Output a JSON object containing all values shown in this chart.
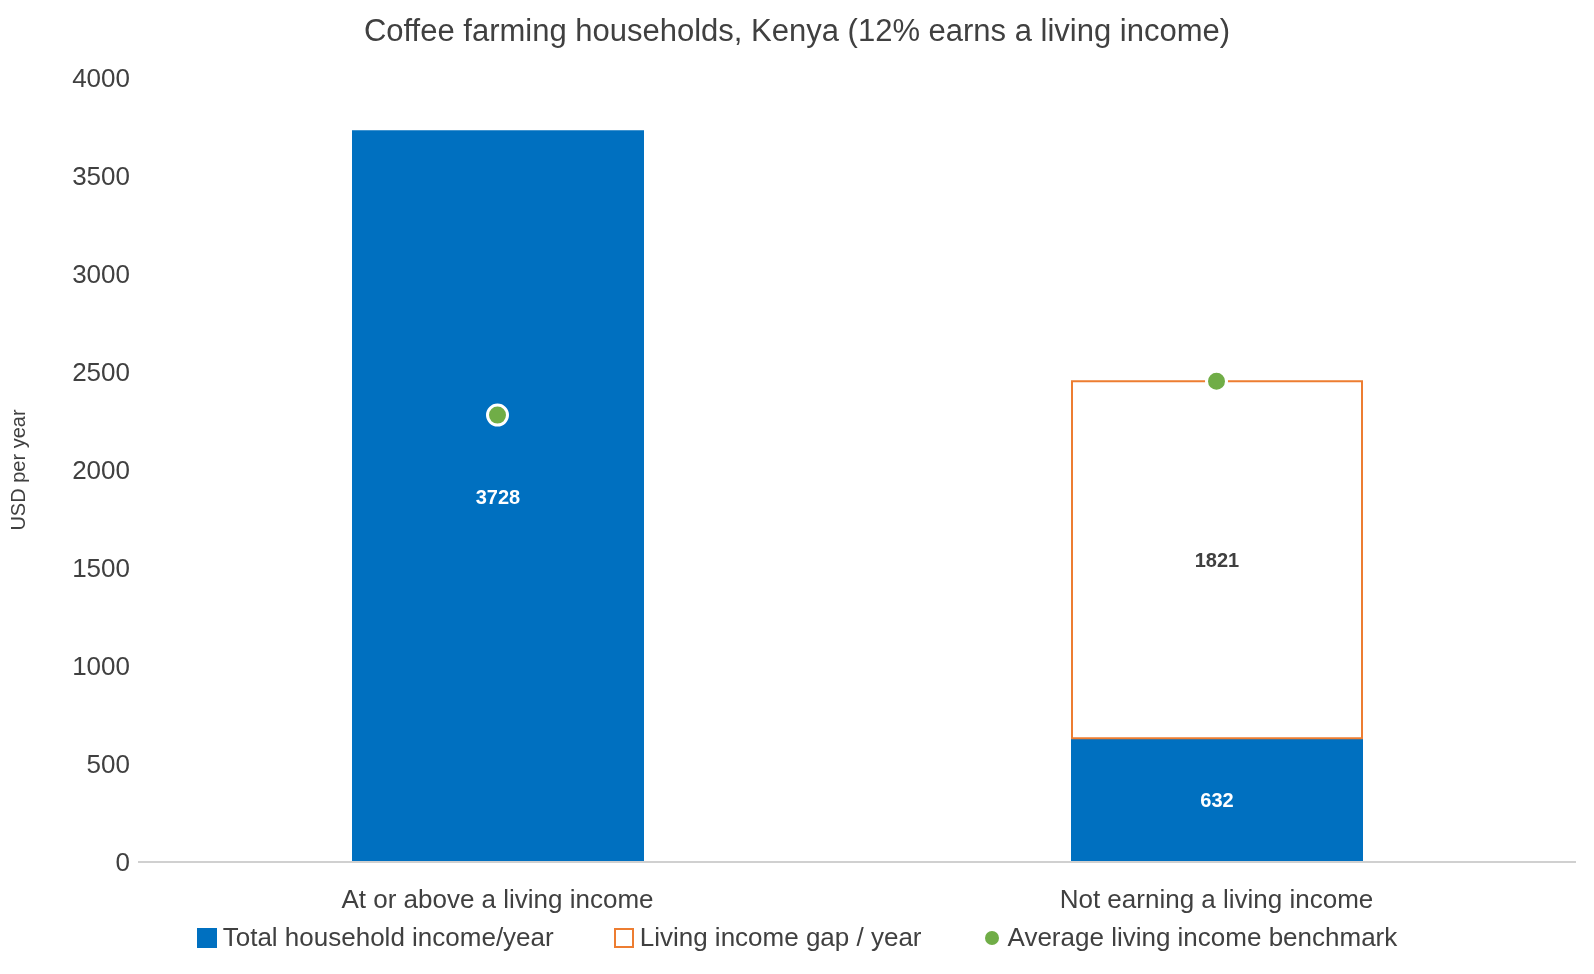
{
  "chart_data": {
    "type": "bar",
    "title": "Coffee farming households, Kenya (12% earns a living income)",
    "ylabel": "USD per year",
    "categories": [
      "At or above a living income",
      "Not earning a living income"
    ],
    "stacked": true,
    "series": [
      {
        "name": "Total household income/year",
        "color": "#0070c0",
        "values": [
          3728,
          632
        ],
        "value_labels": [
          "3728",
          "632"
        ]
      },
      {
        "name": "Living income gap / year",
        "color": "#ed7d31",
        "values": [
          null,
          1821
        ],
        "value_labels": [
          null,
          "1821"
        ]
      },
      {
        "name": "Average living income benchmark",
        "type": "scatter",
        "color": "#70ad47",
        "values": [
          2280,
          2453
        ],
        "x": [
          "At or above a living income",
          "Not earning a living income"
        ]
      }
    ],
    "ylim": [
      0,
      4000
    ],
    "yticks": [
      0,
      500,
      1000,
      1500,
      2000,
      2500,
      3000,
      3500,
      4000
    ],
    "grid": false,
    "legend": "bottom",
    "marker": "circle"
  }
}
